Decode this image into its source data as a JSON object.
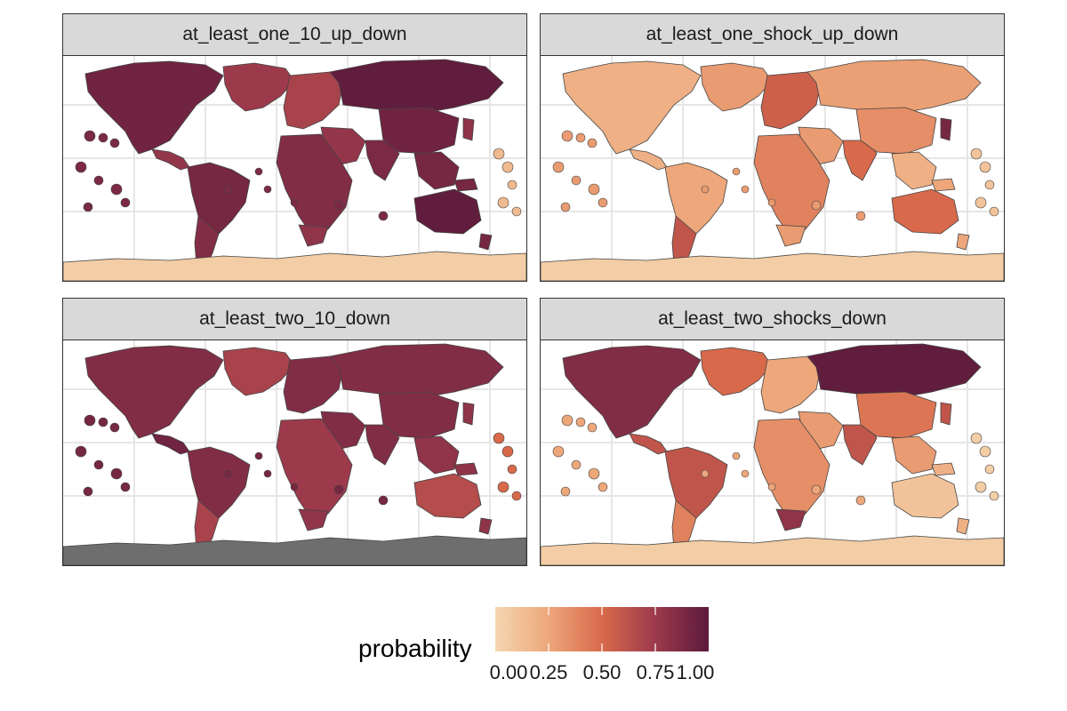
{
  "panels": [
    {
      "title": "at_least_one_10_up_down",
      "regions": {
        "north_america": 0.92,
        "greenland": 0.75,
        "central_america": 0.78,
        "south_america": 0.9,
        "argentina": 0.85,
        "europe": 0.7,
        "russia": 0.98,
        "middle_east": 0.78,
        "africa": 0.85,
        "south_africa": 0.8,
        "india": 0.88,
        "china": 0.92,
        "southeast_asia": 0.9,
        "japan": 0.8,
        "australia": 0.98,
        "nz_png": 0.9,
        "pacific_islands": 0.88,
        "far_pacific": 0.15,
        "iceland": 0.6,
        "antarctica": 0.05
      }
    },
    {
      "title": "at_least_one_shock_up_down",
      "regions": {
        "north_america": 0.2,
        "greenland": 0.3,
        "central_america": 0.2,
        "south_america": 0.25,
        "argentina": 0.6,
        "europe": 0.55,
        "russia": 0.28,
        "middle_east": 0.3,
        "africa": 0.4,
        "south_africa": 0.3,
        "india": 0.5,
        "china": 0.35,
        "southeast_asia": 0.2,
        "japan": 0.9,
        "australia": 0.5,
        "nz_png": 0.25,
        "pacific_islands": 0.3,
        "far_pacific": 0.1,
        "iceland": 0.5,
        "antarctica": 0.05
      }
    },
    {
      "title": "at_least_two_10_down",
      "regions": {
        "north_america": 0.85,
        "greenland": 0.7,
        "central_america": 0.92,
        "south_america": 0.85,
        "argentina": 0.7,
        "europe": 0.85,
        "russia": 0.85,
        "middle_east": 0.85,
        "africa": 0.75,
        "south_africa": 0.8,
        "india": 0.85,
        "china": 0.85,
        "southeast_asia": 0.8,
        "japan": 0.8,
        "australia": 0.65,
        "nz_png": 0.8,
        "pacific_islands": 0.9,
        "far_pacific": 0.5,
        "iceland": 0.8,
        "antarctica": null
      }
    },
    {
      "title": "at_least_two_shocks_down",
      "regions": {
        "north_america": 0.85,
        "greenland": 0.5,
        "central_america": 0.6,
        "south_america": 0.6,
        "argentina": 0.4,
        "europe": 0.25,
        "russia": 0.98,
        "middle_east": 0.3,
        "africa": 0.35,
        "south_africa": 0.8,
        "india": 0.6,
        "china": 0.45,
        "southeast_asia": 0.3,
        "japan": 0.6,
        "australia": 0.1,
        "nz_png": 0.2,
        "pacific_islands": 0.25,
        "far_pacific": 0.05,
        "iceland": 0.6,
        "antarctica": 0.05
      }
    }
  ],
  "legend": {
    "title": "probability",
    "ticks": [
      "0.00",
      "0.25",
      "0.50",
      "0.75",
      "1.00"
    ],
    "tick_values": [
      0,
      0.25,
      0.5,
      0.75,
      1.0
    ]
  },
  "colors": {
    "low": "#f5d6b0",
    "mid": "#d8694b",
    "high": "#5c1a3c",
    "na": "#6e6e6e",
    "border": "#444444",
    "grid": "#e6e6e6"
  }
}
